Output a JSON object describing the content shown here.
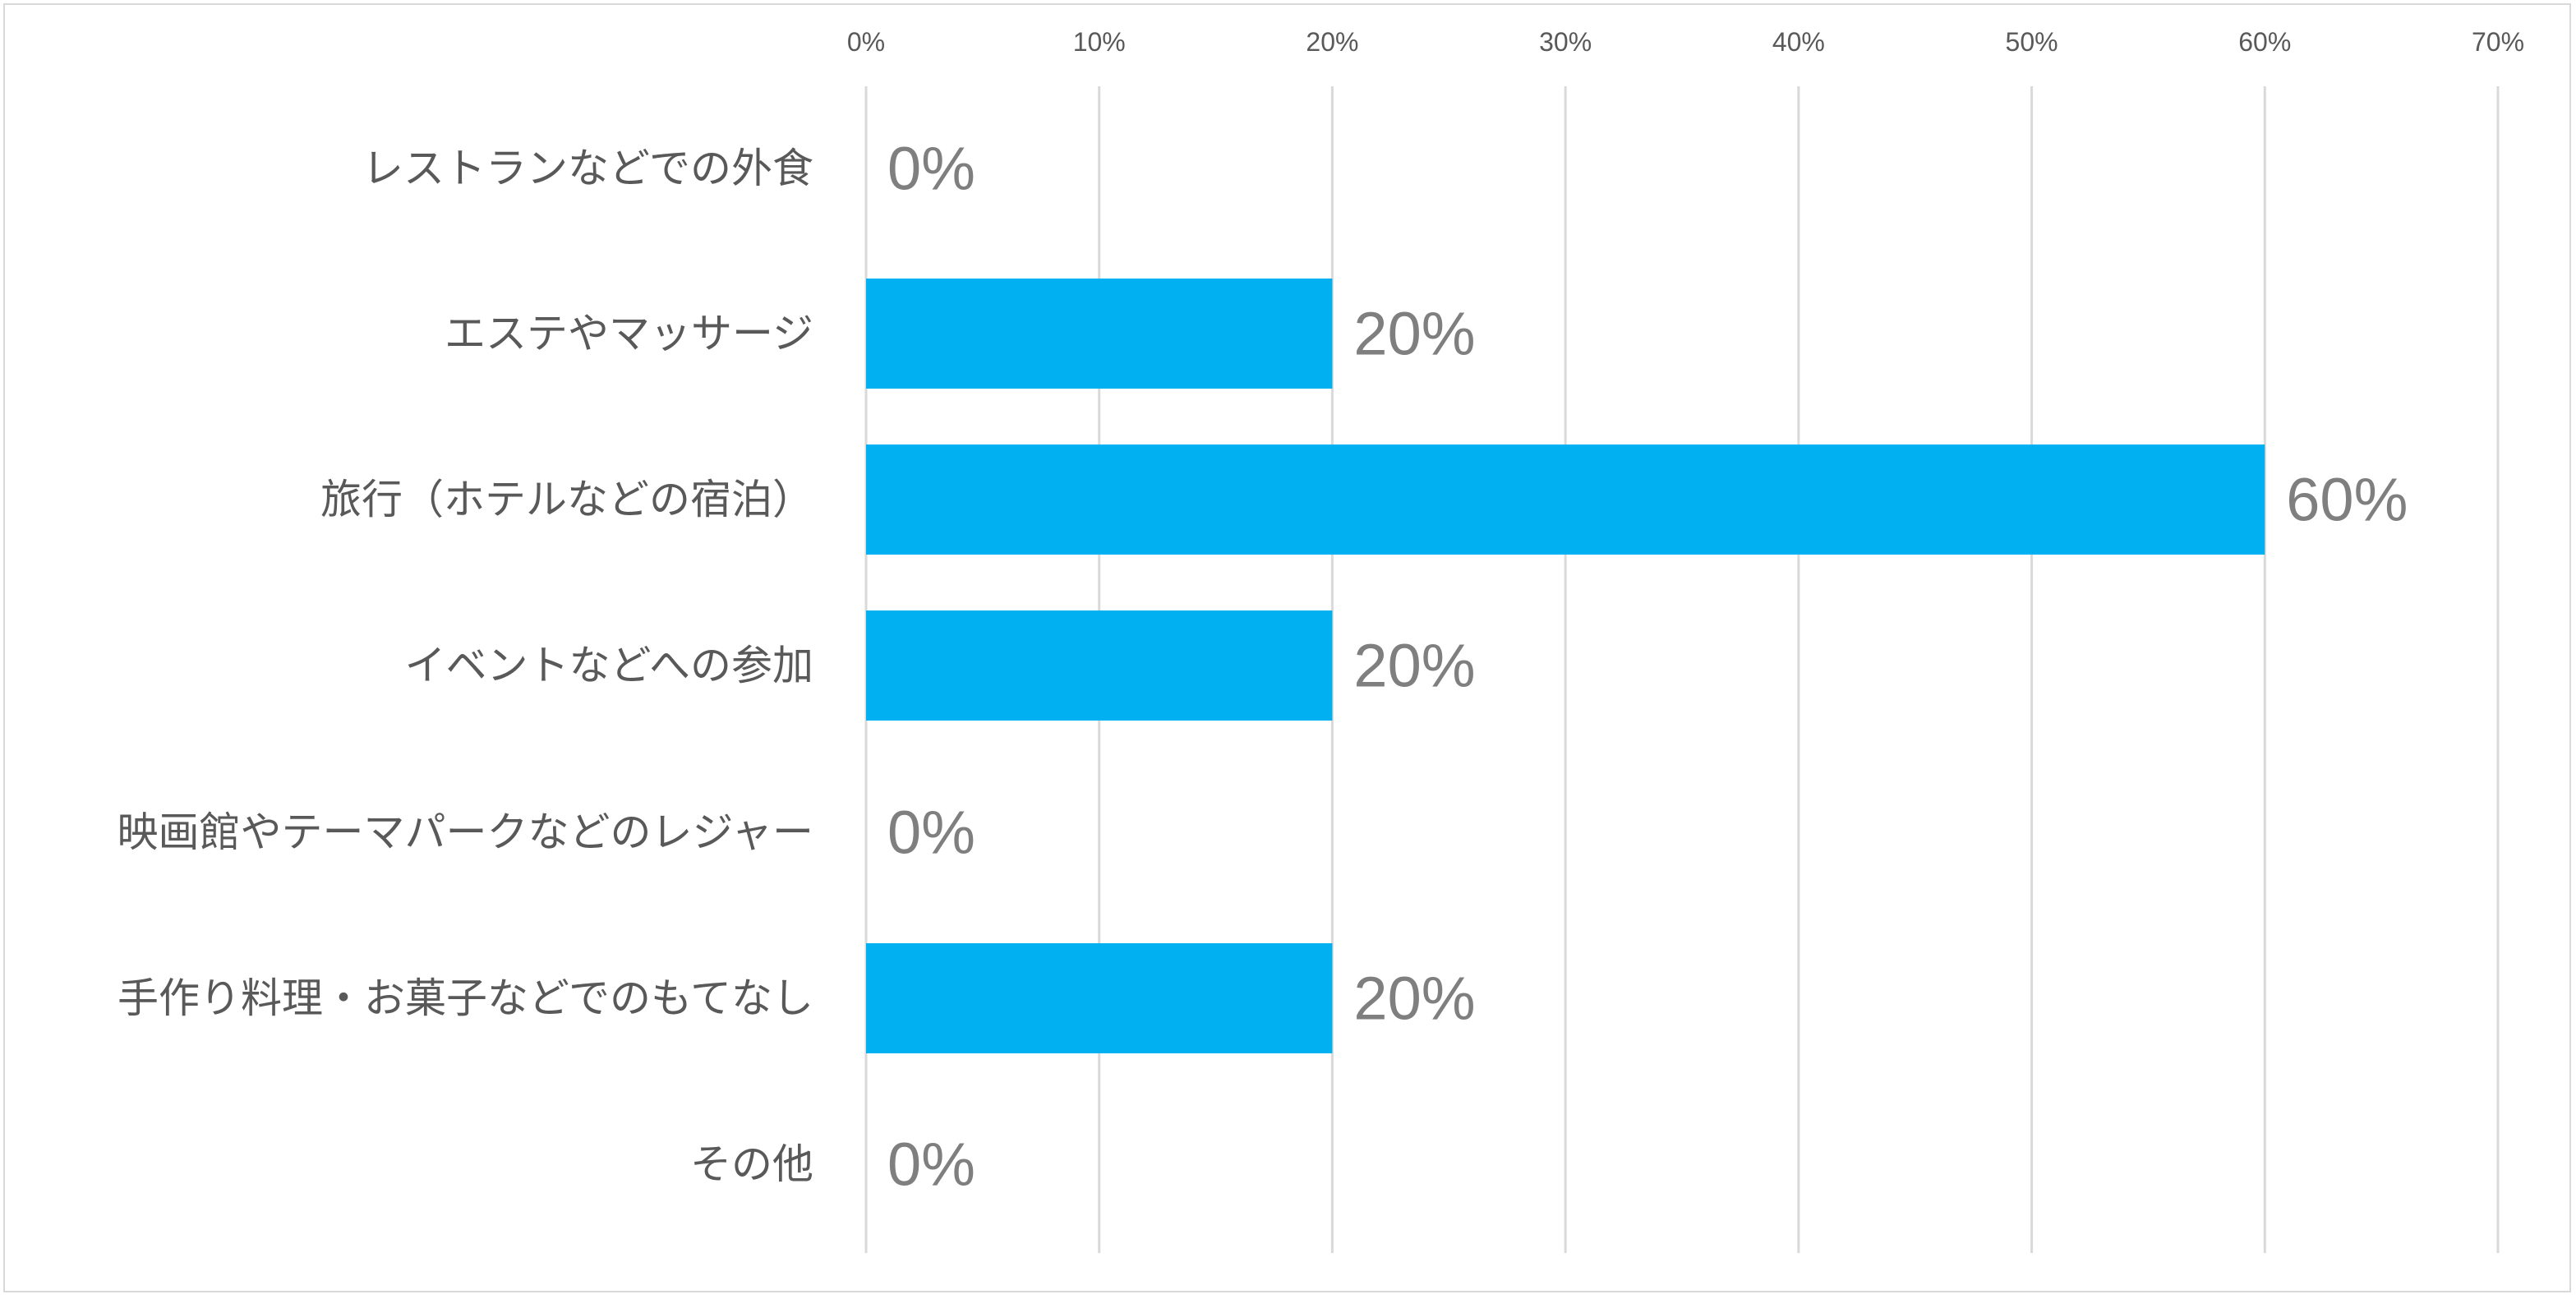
{
  "chart_data": {
    "type": "bar",
    "orientation": "horizontal",
    "title": "",
    "xlabel": "",
    "ylabel": "",
    "categories": [
      "レストランなどでの外食",
      "エステやマッサージ",
      "旅行（ホテルなどの宿泊）",
      "イベントなどへの参加",
      "映画館やテーマパークなどのレジャー",
      "手作り料理・お菓子などでのもてなし",
      "その他"
    ],
    "values": [
      0,
      20,
      60,
      20,
      0,
      20,
      0
    ],
    "data_labels": [
      "0%",
      "20%",
      "60%",
      "20%",
      "0%",
      "20%",
      "0%"
    ],
    "xlim": [
      0,
      70
    ],
    "x_ticks": [
      0,
      10,
      20,
      30,
      40,
      50,
      60,
      70
    ],
    "x_tick_labels": [
      "0%",
      "10%",
      "20%",
      "30%",
      "40%",
      "50%",
      "60%",
      "70%"
    ],
    "x_axis_position": "top",
    "grid": true,
    "legend": "none",
    "bar_color": "#00B0F0",
    "gridline_color": "#D9D9D9",
    "label_color": "#595959",
    "data_label_color": "#7F7F7F"
  }
}
